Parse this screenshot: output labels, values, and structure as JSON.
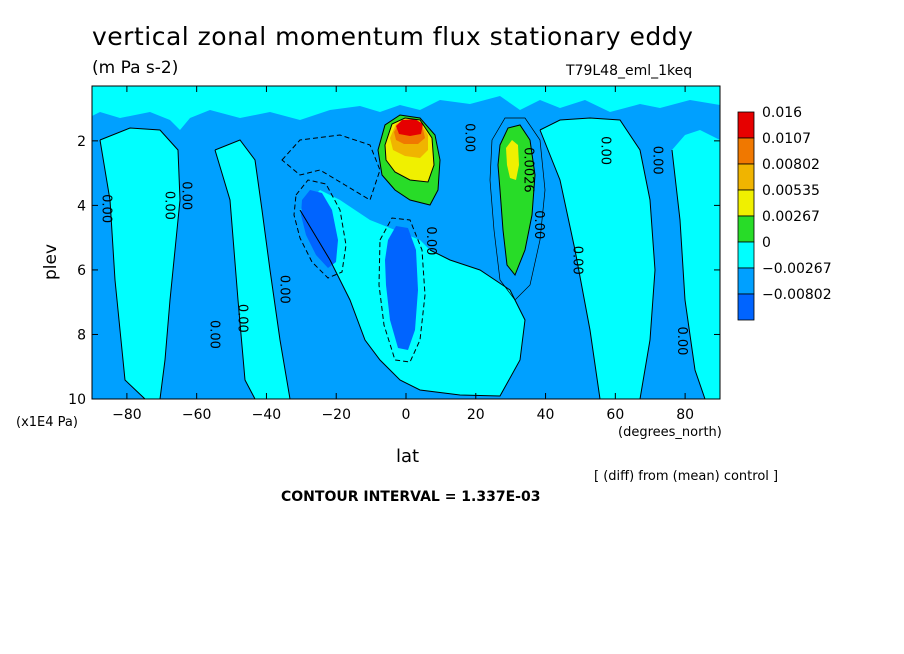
{
  "title": "vertical zonal momentum flux stationary eddy",
  "subtitle": "(m Pa s-2)",
  "run_id": "T79L48_eml_1keq",
  "footer": {
    "y_unit": "(x1E4 Pa)",
    "x_unit": "(degrees_north)",
    "diff_note": "[ (diff) from (mean) control ]",
    "contour_interval": "CONTOUR INTERVAL = 1.337E-03"
  },
  "chart_data": {
    "type": "heatmap",
    "title": "vertical zonal momentum flux stationary eddy",
    "units": "(m Pa s-2)",
    "xlabel": "lat",
    "ylabel": "plev",
    "xlim": [
      -90,
      90
    ],
    "ylim": [
      10,
      0.3
    ],
    "x_ticks": [
      -80,
      -60,
      -40,
      -20,
      0,
      20,
      40,
      60,
      80
    ],
    "y_ticks": [
      2,
      4,
      6,
      8,
      10
    ],
    "contour_interval": 0.001337,
    "colorbar": {
      "levels": [
        "0.016",
        "0.0107",
        "0.00802",
        "0.00535",
        "0.00267",
        "0",
        "−0.00267",
        "−0.00802"
      ],
      "colors": [
        "#e60000",
        "#f07800",
        "#f0b400",
        "#f0f000",
        "#28dc28",
        "#00ffff",
        "#00a0ff",
        "#0064ff"
      ]
    },
    "contour_labels": [
      {
        "text": "0.00",
        "lat": -87,
        "plev": 4.1
      },
      {
        "text": "0.00",
        "lat": -69,
        "plev": 4.0
      },
      {
        "text": "0.00",
        "lat": -64,
        "plev": 3.7
      },
      {
        "text": "0.00",
        "lat": -56,
        "plev": 8.0
      },
      {
        "text": "0.00",
        "lat": -48,
        "plev": 7.5
      },
      {
        "text": "0.00",
        "lat": -36,
        "plev": 6.6
      },
      {
        "text": "0.00",
        "lat": 6,
        "plev": 5.1
      },
      {
        "text": "0.00",
        "lat": 17,
        "plev": 1.9
      },
      {
        "text": "0.0026",
        "lat": 34,
        "plev": 2.9
      },
      {
        "text": "0.00",
        "lat": 37,
        "plev": 4.6
      },
      {
        "text": "0.00",
        "lat": 48,
        "plev": 5.7
      },
      {
        "text": "0.00",
        "lat": 56,
        "plev": 2.3
      },
      {
        "text": "0.00",
        "lat": 71,
        "plev": 2.6
      },
      {
        "text": "0.00",
        "lat": 78,
        "plev": 8.2
      }
    ],
    "features": [
      {
        "sign": "positive",
        "center_lat": 0,
        "center_plev": 1.8,
        "max": 0.016
      },
      {
        "sign": "positive",
        "center_lat": 30,
        "center_plev": 3.0,
        "max": 0.008
      },
      {
        "sign": "negative",
        "center_lat": -25,
        "center_plev": 4.5,
        "min": -0.00802
      },
      {
        "sign": "negative",
        "center_lat": 0,
        "center_plev": 6.5,
        "min": -0.00802
      }
    ]
  }
}
